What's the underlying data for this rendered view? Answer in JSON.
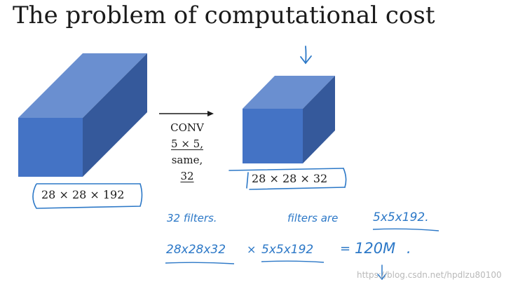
{
  "title": "The problem of computational cost",
  "input_volume": {
    "label": "28 × 28 × 192"
  },
  "output_volume": {
    "label": "28 × 28 × 32"
  },
  "conv": {
    "name": "CONV",
    "kernel": "5 × 5,",
    "padding": "same,",
    "filters": "32"
  },
  "handwritten": {
    "filters_count": "32 filters.",
    "filters_are": "filters are",
    "filter_shape": "5x5x192.",
    "product_left": "28x28x32",
    "times": "×",
    "product_right": "5x5x192",
    "equals": "=",
    "result": "120M",
    "result_period": "."
  },
  "watermark": "https://blog.csdn.net/hpdlzu80100",
  "colors": {
    "cube_front": "#4473c5",
    "cube_top": "#6a8fd0",
    "cube_side": "#35599b",
    "ink": "#2c78c7"
  }
}
